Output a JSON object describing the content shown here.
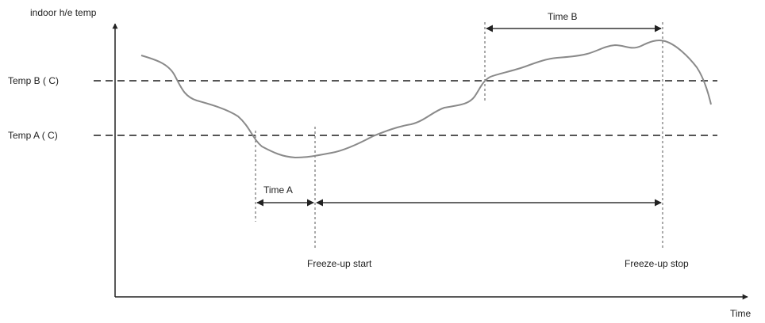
{
  "diagram": {
    "y_axis_label": "indoor h/e temp",
    "x_axis_label": "Time",
    "thresholds": {
      "temp_b": "Temp B ( C)",
      "temp_a": "Temp A ( C)"
    },
    "intervals": {
      "time_a": "Time A",
      "time_b": "Time B"
    },
    "events": {
      "freeze_start": "Freeze-up start",
      "freeze_stop": "Freeze-up stop"
    },
    "colors": {
      "curve": "#8a8a8a",
      "lines": "#333333"
    }
  }
}
